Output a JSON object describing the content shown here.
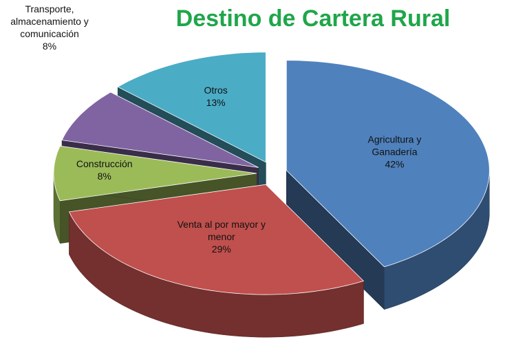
{
  "chart_data": {
    "type": "pie3d",
    "title": "Destino de Cartera Rural",
    "categories": [
      "Agricultura y Ganadería",
      "Venta al por mayor y menor",
      "Construcción",
      "Transporte, almacenamiento y comunicación",
      "Otros"
    ],
    "values": [
      42,
      29,
      8,
      8,
      13
    ],
    "value_labels": [
      "42%",
      "29%",
      "8%",
      "8%",
      "13%"
    ],
    "colors": [
      "#4f81bd",
      "#c0504d",
      "#9bbb59",
      "#8064a2",
      "#4bacc6"
    ]
  }
}
